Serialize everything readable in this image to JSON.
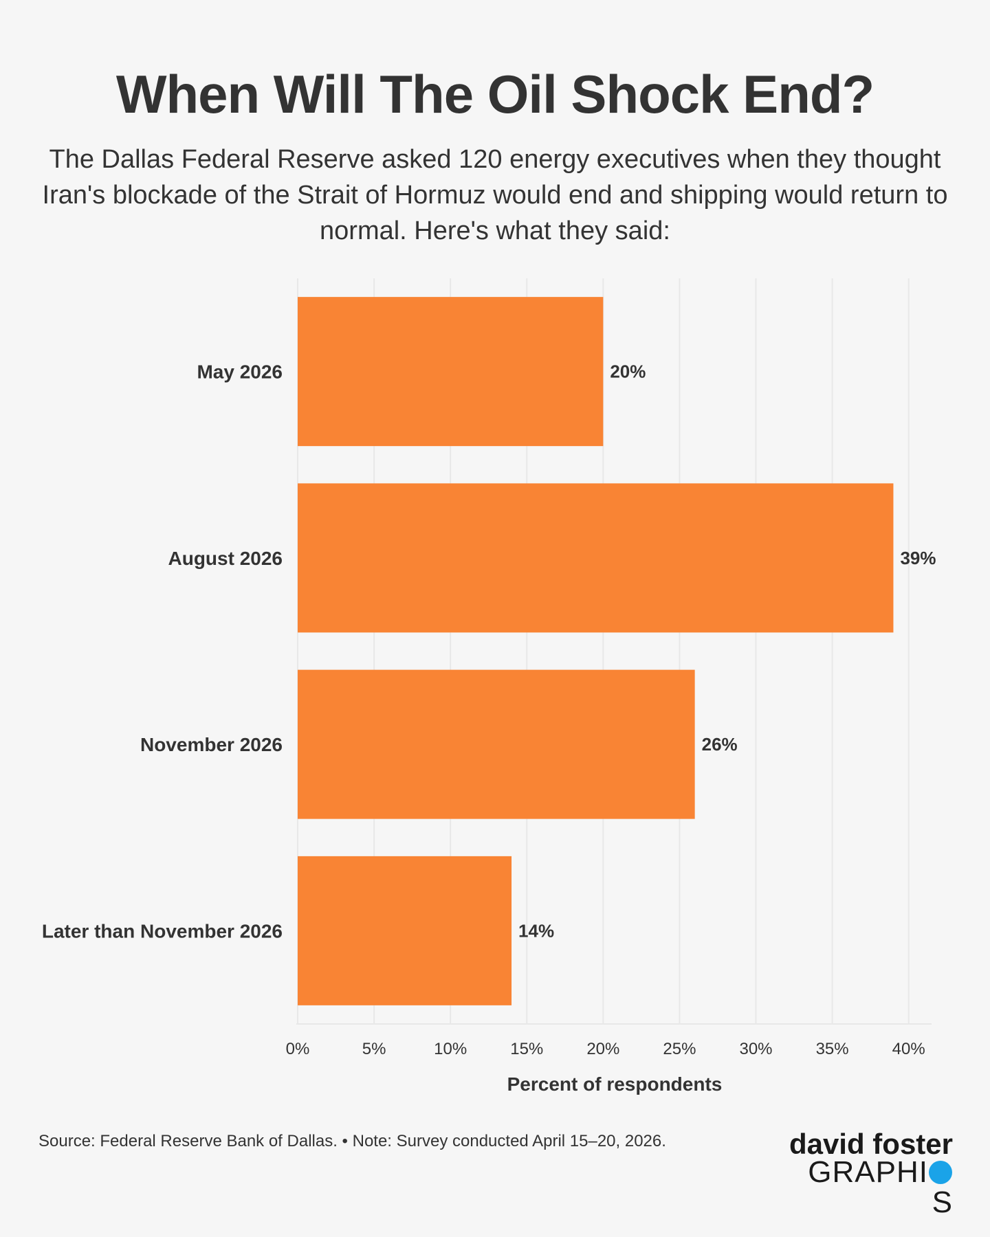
{
  "header": {
    "title": "When Will The Oil Shock End?",
    "subtitle": "The Dallas Federal Reserve asked 120 energy executives when they thought Iran's blockade of the Strait of Hormuz would end and shipping would return to normal. Here's what they said:"
  },
  "footer": {
    "source": "Source: Federal Reserve Bank of Dallas. • Note: Survey conducted April 15–20, 2026."
  },
  "logo": {
    "line1": "david foster",
    "line2_part1": "GRAPHI",
    "line2_part2": "S",
    "accent_color": "#1aa3e8"
  },
  "colors": {
    "bar": "#f98434",
    "grid": "#e8e8e8",
    "text": "#333333"
  },
  "chart_data": {
    "type": "bar",
    "orientation": "horizontal",
    "categories": [
      "May 2026",
      "August 2026",
      "November 2026",
      "Later than November 2026"
    ],
    "values": [
      20,
      39,
      26,
      14
    ],
    "value_labels": [
      "20%",
      "39%",
      "26%",
      "14%"
    ],
    "xlabel": "Percent of respondents",
    "xlim": [
      0,
      41.5
    ],
    "xticks": [
      0,
      5,
      10,
      15,
      20,
      25,
      30,
      35,
      40
    ],
    "xtick_labels": [
      "0%",
      "5%",
      "10%",
      "15%",
      "20%",
      "25%",
      "30%",
      "35%",
      "40%"
    ],
    "grid": true,
    "legend": "none"
  }
}
